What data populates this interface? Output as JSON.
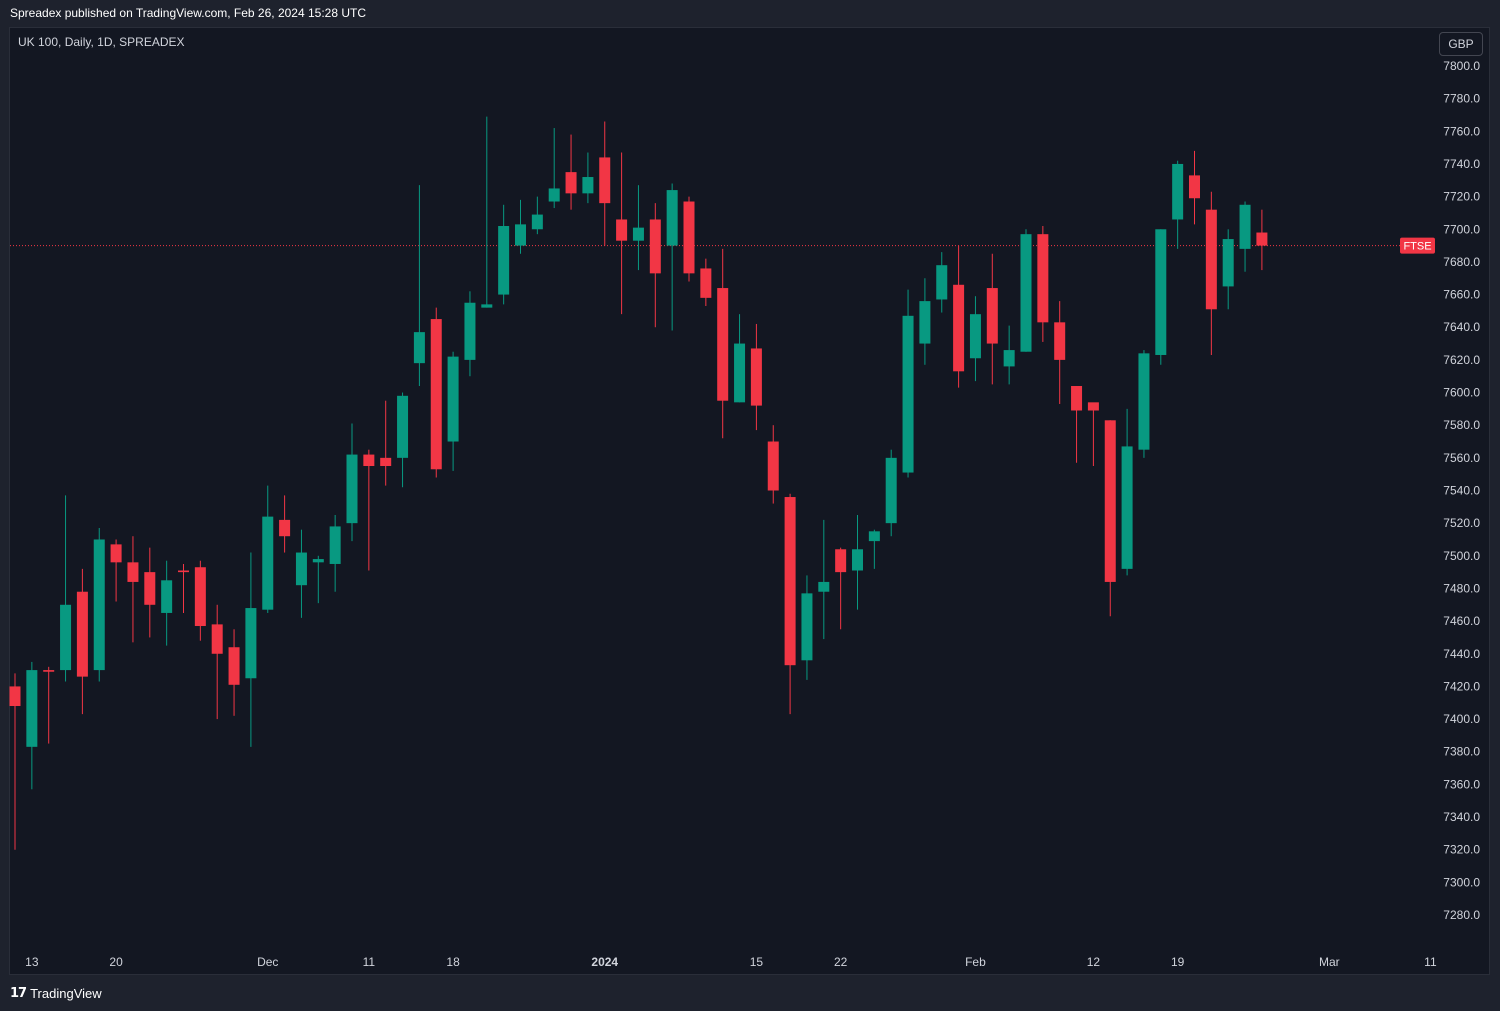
{
  "publisher_text": "Spreadex published on TradingView.com, Feb 26, 2024 15:28 UTC",
  "symbol_info": "UK 100, Daily, 1D, SPREADEX",
  "currency": "GBP",
  "footer": {
    "logo_text": "TradingView"
  },
  "colors": {
    "background": "#131722",
    "up": "#089981",
    "down": "#f23645",
    "grid": "#2a2e39",
    "text": "#d1d4dc",
    "price_line": "#f23645"
  },
  "chart_data": {
    "type": "candlestick",
    "title": "",
    "instrument": "UK 100",
    "price_label": "FTSE",
    "last_price": 7690,
    "ylim": [
      7260,
      7810
    ],
    "y_ticks": [
      "7800.0",
      "7780.0",
      "7760.0",
      "7740.0",
      "7720.0",
      "7700.0",
      "7680.0",
      "7660.0",
      "7640.0",
      "7620.0",
      "7600.0",
      "7580.0",
      "7560.0",
      "7540.0",
      "7520.0",
      "7500.0",
      "7480.0",
      "7460.0",
      "7440.0",
      "7420.0",
      "7400.0",
      "7380.0",
      "7360.0",
      "7340.0",
      "7320.0",
      "7300.0",
      "7280.0"
    ],
    "x_ticks": [
      {
        "label": "13",
        "index": 1
      },
      {
        "label": "20",
        "index": 6
      },
      {
        "label": "Dec",
        "index": 15
      },
      {
        "label": "11",
        "index": 21
      },
      {
        "label": "18",
        "index": 26
      },
      {
        "label": "2024",
        "index": 35
      },
      {
        "label": "15",
        "index": 44
      },
      {
        "label": "22",
        "index": 49
      },
      {
        "label": "Feb",
        "index": 57
      },
      {
        "label": "12",
        "index": 64
      },
      {
        "label": "19",
        "index": 69
      },
      {
        "label": "Mar",
        "index": 78
      },
      {
        "label": "11",
        "index": 84
      }
    ],
    "candles": [
      {
        "o": 7420,
        "h": 7428,
        "l": 7320,
        "c": 7408
      },
      {
        "o": 7383,
        "h": 7435,
        "l": 7357,
        "c": 7430
      },
      {
        "o": 7430,
        "h": 7432,
        "l": 7385,
        "c": 7429
      },
      {
        "o": 7430,
        "h": 7537,
        "l": 7423,
        "c": 7470
      },
      {
        "o": 7478,
        "h": 7492,
        "l": 7403,
        "c": 7426
      },
      {
        "o": 7430,
        "h": 7517,
        "l": 7423,
        "c": 7510
      },
      {
        "o": 7507,
        "h": 7510,
        "l": 7472,
        "c": 7496
      },
      {
        "o": 7496,
        "h": 7512,
        "l": 7447,
        "c": 7484
      },
      {
        "o": 7490,
        "h": 7505,
        "l": 7450,
        "c": 7470
      },
      {
        "o": 7465,
        "h": 7497,
        "l": 7445,
        "c": 7485
      },
      {
        "o": 7491,
        "h": 7495,
        "l": 7465,
        "c": 7490
      },
      {
        "o": 7493,
        "h": 7497,
        "l": 7448,
        "c": 7457
      },
      {
        "o": 7458,
        "h": 7470,
        "l": 7400,
        "c": 7440
      },
      {
        "o": 7444,
        "h": 7455,
        "l": 7402,
        "c": 7421
      },
      {
        "o": 7425,
        "h": 7502,
        "l": 7383,
        "c": 7468
      },
      {
        "o": 7467,
        "h": 7543,
        "l": 7465,
        "c": 7524
      },
      {
        "o": 7522,
        "h": 7537,
        "l": 7502,
        "c": 7512
      },
      {
        "o": 7482,
        "h": 7516,
        "l": 7462,
        "c": 7502
      },
      {
        "o": 7496,
        "h": 7500,
        "l": 7471,
        "c": 7498
      },
      {
        "o": 7495,
        "h": 7525,
        "l": 7478,
        "c": 7518
      },
      {
        "o": 7520,
        "h": 7581,
        "l": 7509,
        "c": 7562
      },
      {
        "o": 7562,
        "h": 7565,
        "l": 7491,
        "c": 7555
      },
      {
        "o": 7560,
        "h": 7595,
        "l": 7543,
        "c": 7555
      },
      {
        "o": 7560,
        "h": 7600,
        "l": 7542,
        "c": 7598
      },
      {
        "o": 7618,
        "h": 7727,
        "l": 7604,
        "c": 7637
      },
      {
        "o": 7645,
        "h": 7652,
        "l": 7548,
        "c": 7553
      },
      {
        "o": 7570,
        "h": 7625,
        "l": 7552,
        "c": 7622
      },
      {
        "o": 7620,
        "h": 7662,
        "l": 7610,
        "c": 7655
      },
      {
        "o": 7652,
        "h": 7769,
        "l": 7652,
        "c": 7654
      },
      {
        "o": 7660,
        "h": 7715,
        "l": 7654,
        "c": 7702
      },
      {
        "o": 7690,
        "h": 7718,
        "l": 7685,
        "c": 7703
      },
      {
        "o": 7700,
        "h": 7720,
        "l": 7697,
        "c": 7709
      },
      {
        "o": 7717,
        "h": 7762,
        "l": 7713,
        "c": 7725
      },
      {
        "o": 7735,
        "h": 7758,
        "l": 7712,
        "c": 7722
      },
      {
        "o": 7722,
        "h": 7747,
        "l": 7716,
        "c": 7732
      },
      {
        "o": 7744,
        "h": 7766,
        "l": 7690,
        "c": 7716
      },
      {
        "o": 7706,
        "h": 7747,
        "l": 7648,
        "c": 7693
      },
      {
        "o": 7693,
        "h": 7727,
        "l": 7675,
        "c": 7701
      },
      {
        "o": 7706,
        "h": 7716,
        "l": 7640,
        "c": 7673
      },
      {
        "o": 7690,
        "h": 7728,
        "l": 7638,
        "c": 7724
      },
      {
        "o": 7717,
        "h": 7720,
        "l": 7668,
        "c": 7673
      },
      {
        "o": 7676,
        "h": 7682,
        "l": 7653,
        "c": 7658
      },
      {
        "o": 7664,
        "h": 7688,
        "l": 7572,
        "c": 7595
      },
      {
        "o": 7594,
        "h": 7648,
        "l": 7594,
        "c": 7630
      },
      {
        "o": 7627,
        "h": 7642,
        "l": 7577,
        "c": 7592
      },
      {
        "o": 7570,
        "h": 7580,
        "l": 7532,
        "c": 7540
      },
      {
        "o": 7536,
        "h": 7538,
        "l": 7403,
        "c": 7433
      },
      {
        "o": 7436,
        "h": 7488,
        "l": 7424,
        "c": 7477
      },
      {
        "o": 7478,
        "h": 7522,
        "l": 7449,
        "c": 7484
      },
      {
        "o": 7504,
        "h": 7505,
        "l": 7455,
        "c": 7490
      },
      {
        "o": 7491,
        "h": 7525,
        "l": 7467,
        "c": 7504
      },
      {
        "o": 7509,
        "h": 7516,
        "l": 7492,
        "c": 7515
      },
      {
        "o": 7520,
        "h": 7565,
        "l": 7512,
        "c": 7560
      },
      {
        "o": 7551,
        "h": 7663,
        "l": 7548,
        "c": 7647
      },
      {
        "o": 7630,
        "h": 7670,
        "l": 7617,
        "c": 7656
      },
      {
        "o": 7657,
        "h": 7686,
        "l": 7649,
        "c": 7678
      },
      {
        "o": 7666,
        "h": 7690,
        "l": 7603,
        "c": 7613
      },
      {
        "o": 7621,
        "h": 7659,
        "l": 7607,
        "c": 7648
      },
      {
        "o": 7664,
        "h": 7685,
        "l": 7605,
        "c": 7630
      },
      {
        "o": 7616,
        "h": 7641,
        "l": 7605,
        "c": 7626
      },
      {
        "o": 7625,
        "h": 7700,
        "l": 7625,
        "c": 7697
      },
      {
        "o": 7697,
        "h": 7702,
        "l": 7631,
        "c": 7643
      },
      {
        "o": 7643,
        "h": 7656,
        "l": 7593,
        "c": 7620
      },
      {
        "o": 7604,
        "h": 7604,
        "l": 7557,
        "c": 7589
      },
      {
        "o": 7594,
        "h": 7590,
        "l": 7555,
        "c": 7589
      },
      {
        "o": 7583,
        "h": 7583,
        "l": 7463,
        "c": 7484
      },
      {
        "o": 7492,
        "h": 7590,
        "l": 7488,
        "c": 7567
      },
      {
        "o": 7565,
        "h": 7626,
        "l": 7560,
        "c": 7624
      },
      {
        "o": 7623,
        "h": 7700,
        "l": 7617,
        "c": 7700
      },
      {
        "o": 7706,
        "h": 7742,
        "l": 7688,
        "c": 7740
      },
      {
        "o": 7733,
        "h": 7748,
        "l": 7703,
        "c": 7719
      },
      {
        "o": 7712,
        "h": 7723,
        "l": 7623,
        "c": 7651
      },
      {
        "o": 7665,
        "h": 7700,
        "l": 7651,
        "c": 7694
      },
      {
        "o": 7688,
        "h": 7717,
        "l": 7674,
        "c": 7715
      },
      {
        "o": 7698,
        "h": 7712,
        "l": 7675,
        "c": 7690
      }
    ]
  }
}
